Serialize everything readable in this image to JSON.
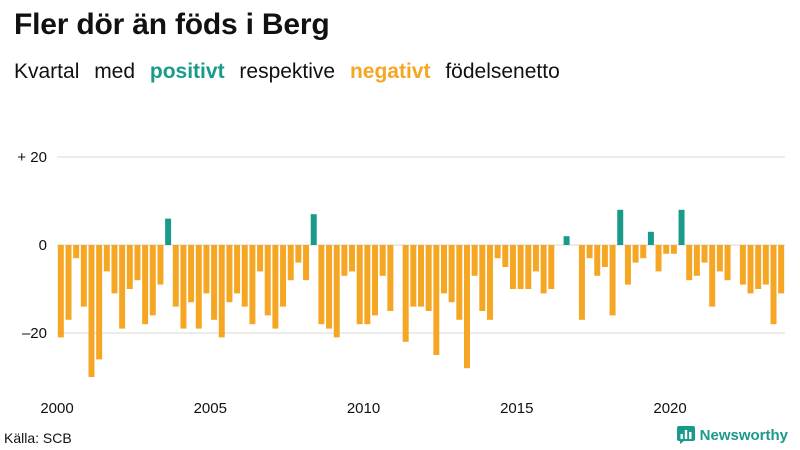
{
  "title": "Fler dör än föds i Berg",
  "subtitle": {
    "part1": "Kvartal med",
    "positive_word": "positivt",
    "part2": "respektive",
    "negative_word": "negativt",
    "part3": "födelsenetto"
  },
  "source": "Källa: SCB",
  "brand": "Newsworthy",
  "colors": {
    "positive": "#1a9a8a",
    "negative": "#f5a623",
    "grid": "#d9d9d9"
  },
  "chart_data": {
    "type": "bar",
    "x_start_year": 2000,
    "values": [
      -21,
      -17,
      -3,
      -14,
      -30,
      -26,
      -6,
      -11,
      -19,
      -10,
      -8,
      -18,
      -16,
      -9,
      6,
      -14,
      -19,
      -13,
      -19,
      -11,
      -17,
      -21,
      -13,
      -11,
      -14,
      -18,
      -6,
      -16,
      -19,
      -14,
      -8,
      -4,
      -8,
      7,
      -18,
      -19,
      -21,
      -7,
      -6,
      -18,
      -18,
      -16,
      -7,
      -15,
      0,
      -22,
      -14,
      -14,
      -15,
      -25,
      -11,
      -13,
      -17,
      -28,
      -7,
      -15,
      -17,
      -3,
      -5,
      -10,
      -10,
      -10,
      -6,
      -11,
      -10,
      0,
      2,
      0,
      -17,
      -3,
      -7,
      -5,
      -16,
      8,
      -9,
      -4,
      -3,
      3,
      -6,
      -2,
      -2,
      8,
      -8,
      -7,
      -4,
      -14,
      -6,
      -8,
      0,
      -9,
      -11,
      -10,
      -9,
      -18,
      -11
    ],
    "yticks": [
      "+ 20",
      "0",
      "–20"
    ],
    "ytick_values": [
      20,
      0,
      -20
    ],
    "xticks": [
      "2000",
      "2005",
      "2010",
      "2015",
      "2020"
    ],
    "xtick_years": [
      2000,
      2005,
      2010,
      2015,
      2020
    ],
    "ylim": [
      -32,
      20
    ],
    "xlabel": "",
    "ylabel": "",
    "grid": true,
    "legend": "none"
  }
}
